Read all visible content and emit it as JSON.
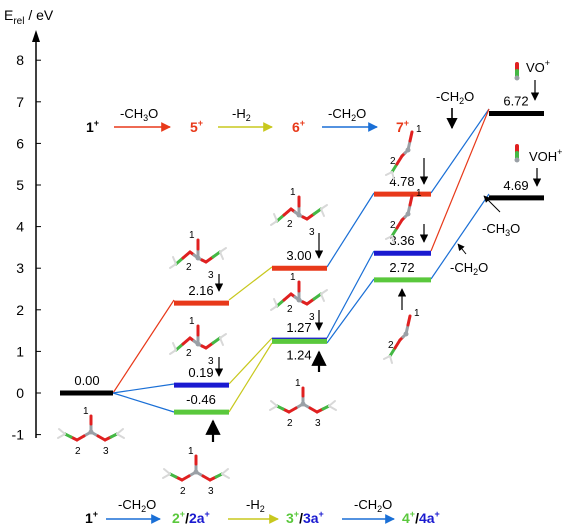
{
  "axis": {
    "title_main": "E",
    "title_sub": "rel",
    "title_unit": " / eV",
    "ticks": [
      "8",
      "7",
      "6",
      "5",
      "4",
      "3",
      "2",
      "1",
      "0",
      "-1"
    ],
    "range": [
      -1,
      8.5
    ]
  },
  "colors": {
    "black": "#000000",
    "red": "#e8391a",
    "yellow": "#c8c81e",
    "blue": "#1a6fd6",
    "darkblue": "#1a1ad0",
    "green": "#5ac83c",
    "oxygen": "#e02020",
    "carbon": "#44b844"
  },
  "levels": [
    {
      "id": "1",
      "value": "0.00",
      "energy": 0.0,
      "color": "black"
    },
    {
      "id": "5",
      "value": "2.16",
      "energy": 2.16,
      "color": "red"
    },
    {
      "id": "2",
      "value": "0.19",
      "energy": 0.19,
      "color": "darkblue"
    },
    {
      "id": "2a",
      "value": "-0.46",
      "energy": -0.46,
      "color": "green"
    },
    {
      "id": "6",
      "value": "3.00",
      "energy": 3.0,
      "color": "red"
    },
    {
      "id": "3",
      "value": "1.27",
      "energy": 1.27,
      "color": "darkblue"
    },
    {
      "id": "3a",
      "value": "1.24",
      "energy": 1.24,
      "color": "green"
    },
    {
      "id": "7",
      "value": "4.78",
      "energy": 4.78,
      "color": "red"
    },
    {
      "id": "4",
      "value": "3.36",
      "energy": 3.36,
      "color": "darkblue"
    },
    {
      "id": "4a",
      "value": "2.72",
      "energy": 2.72,
      "color": "green"
    },
    {
      "id": "VO",
      "value": "6.72",
      "energy": 6.72,
      "color": "black"
    },
    {
      "id": "VOH",
      "value": "4.69",
      "energy": 4.69,
      "color": "black"
    }
  ],
  "top_scheme": {
    "s1": "1",
    "s1_sup": "+",
    "step1": "-CH",
    "step1_sub": "3",
    "step1_end": "O",
    "s5": "5",
    "s5_sup": "+",
    "step2": "-H",
    "step2_sub": "2",
    "s6": "6",
    "s6_sup": "+",
    "step3": "-CH",
    "step3_sub": "2",
    "step3_end": "O",
    "s7": "7",
    "s7_sup": "+"
  },
  "bottom_scheme": {
    "s1": "1",
    "s1_sup": "+",
    "step1": "-CH",
    "step1_sub": "2",
    "step1_end": "O",
    "s2": "2",
    "s2_sup": "+",
    "slash1": "/",
    "s2a": "2a",
    "s2a_sup": "+",
    "step2": "-H",
    "step2_sub": "2",
    "s3": "3",
    "s3_sup": "+",
    "slash2": "/",
    "s3a": "3a",
    "s3a_sup": "+",
    "step3": "-CH",
    "step3_sub": "2",
    "step3_end": "O",
    "s4": "4",
    "s4_sup": "+",
    "slash3": "/",
    "s4a": "4a",
    "s4a_sup": "+"
  },
  "annotations": {
    "ch2o_top": "-CH",
    "ch2o_top_sub": "2",
    "ch2o_top_end": "O",
    "ch3o_right": "-CH",
    "ch3o_right_sub": "3",
    "ch3o_right_end": "O",
    "ch2o_right": "-CH",
    "ch2o_right_sub": "2",
    "ch2o_right_end": "O",
    "vo": "VO",
    "vo_sup": "+",
    "voh": "VOH",
    "voh_sup": "+"
  },
  "atom_numbers": [
    "1",
    "2",
    "3"
  ]
}
